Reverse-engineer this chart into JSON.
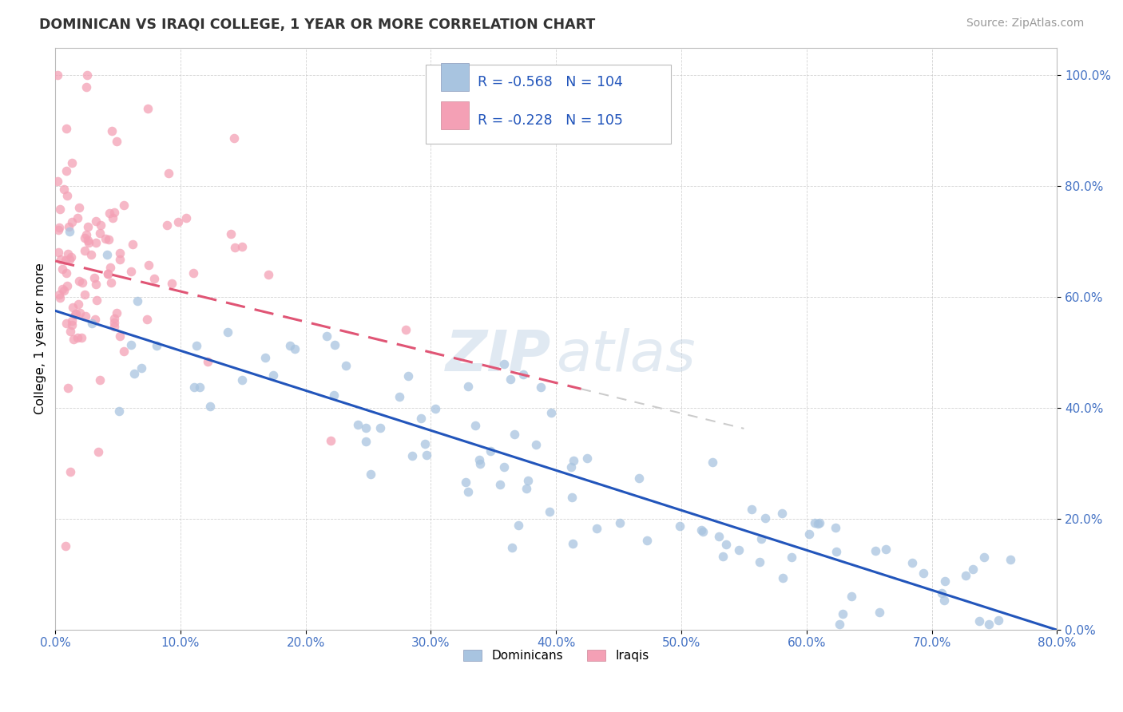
{
  "title": "DOMINICAN VS IRAQI COLLEGE, 1 YEAR OR MORE CORRELATION CHART",
  "source_text": "Source: ZipAtlas.com",
  "ylabel": "College, 1 year or more",
  "xlim": [
    0.0,
    0.8
  ],
  "ylim": [
    0.0,
    1.05
  ],
  "xtick_vals": [
    0.0,
    0.1,
    0.2,
    0.3,
    0.4,
    0.5,
    0.6,
    0.7,
    0.8
  ],
  "ytick_vals": [
    0.0,
    0.2,
    0.4,
    0.6,
    0.8,
    1.0
  ],
  "blue_color": "#a8c4e0",
  "pink_color": "#f4a0b5",
  "blue_line_color": "#2255bb",
  "pink_line_color": "#e05575",
  "legend_text_color": "#2255bb",
  "R_blue": -0.568,
  "N_blue": 104,
  "R_pink": -0.228,
  "N_pink": 105,
  "watermark_zip": "ZIP",
  "watermark_atlas": "atlas",
  "blue_intercept": 0.575,
  "blue_slope": -0.72,
  "pink_intercept": 0.665,
  "pink_slope": -0.55,
  "pink_line_xmax": 0.42
}
